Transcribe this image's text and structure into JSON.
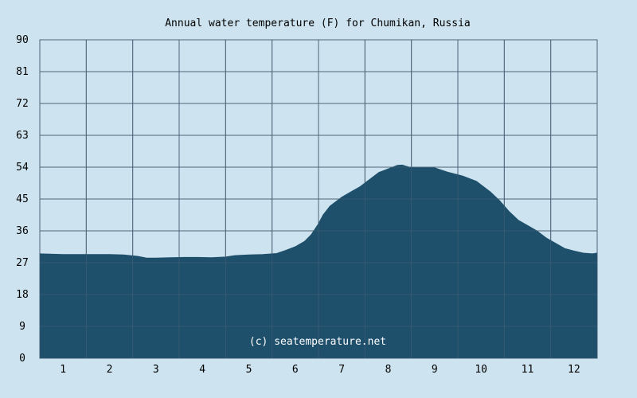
{
  "chart_data": {
    "type": "area",
    "title": "Annual water temperature (F) for Chumikan, Russia",
    "xlabel": "",
    "ylabel": "",
    "ylim": [
      0,
      90
    ],
    "xlim": [
      0.5,
      12.5
    ],
    "y_ticks": [
      "0",
      "9",
      "18",
      "27",
      "36",
      "45",
      "54",
      "63",
      "72",
      "81",
      "90"
    ],
    "x_ticks": [
      "1",
      "2",
      "3",
      "4",
      "5",
      "6",
      "7",
      "8",
      "9",
      "10",
      "11",
      "12"
    ],
    "grid": true,
    "watermark": "(c) seatemperature.net",
    "series": [
      {
        "x": [
          0.5,
          1.0,
          1.5,
          2.0,
          2.3,
          2.6,
          2.8,
          3.0,
          3.3,
          3.6,
          3.9,
          4.2,
          4.5,
          4.7,
          5.0,
          5.3,
          5.6,
          5.8,
          6.0,
          6.2,
          6.35,
          6.5,
          6.6,
          6.75,
          6.9,
          7.0,
          7.2,
          7.4,
          7.6,
          7.8,
          8.0,
          8.2,
          8.3,
          8.45,
          8.6,
          9.0,
          9.3,
          9.6,
          9.9,
          10.0,
          10.2,
          10.4,
          10.6,
          10.8,
          11.0,
          11.2,
          11.4,
          11.6,
          11.8,
          12.0,
          12.2,
          12.4,
          12.5
        ],
        "values": [
          29.5,
          29.3,
          29.3,
          29.3,
          29.2,
          28.8,
          28.3,
          28.3,
          28.4,
          28.5,
          28.5,
          28.4,
          28.6,
          29.0,
          29.2,
          29.3,
          29.6,
          30.5,
          31.5,
          33.0,
          35.0,
          38.0,
          40.5,
          43.0,
          44.5,
          45.5,
          47.0,
          48.5,
          50.5,
          52.5,
          53.5,
          54.5,
          54.6,
          54.0,
          53.8,
          53.8,
          52.5,
          51.5,
          50.0,
          49.0,
          47.0,
          44.5,
          41.5,
          39.0,
          37.5,
          36.0,
          34.0,
          32.5,
          31.0,
          30.3,
          29.7,
          29.5,
          29.7
        ]
      }
    ],
    "colors": {
      "background": "#cde3ef",
      "area_fill": "#1e4f6b",
      "grid_line": "#4a6478",
      "watermark_text": "#ffffff"
    }
  }
}
